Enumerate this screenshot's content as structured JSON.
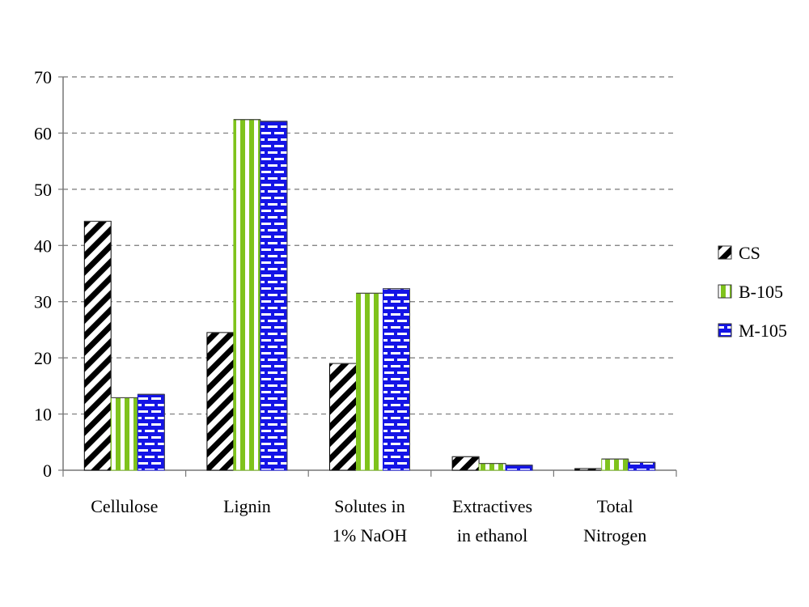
{
  "chart_data": {
    "type": "bar",
    "title": "",
    "xlabel": "",
    "ylabel": "",
    "ylim": [
      0,
      70
    ],
    "yticks": [
      "0",
      "10",
      "20",
      "30",
      "40",
      "50",
      "60",
      "70"
    ],
    "grid": true,
    "legend_position": "right",
    "categories": [
      [
        "Cellulose"
      ],
      [
        "Lignin"
      ],
      [
        "Solutes in",
        "1% NaOH"
      ],
      [
        "Extractives",
        "in ethanol"
      ],
      [
        "Total",
        "Nitrogen"
      ]
    ],
    "series": [
      {
        "name": "CS",
        "pattern": "diagonal-stripes",
        "colors": [
          "#000000",
          "#ffffff"
        ],
        "values": [
          44.3,
          24.5,
          19.0,
          2.4,
          0.3
        ]
      },
      {
        "name": "B-105",
        "pattern": "vertical-stripes",
        "colors": [
          "#7fc31c",
          "#ffffff"
        ],
        "values": [
          12.9,
          62.4,
          31.5,
          1.2,
          2.0
        ]
      },
      {
        "name": "M-105",
        "pattern": "brick",
        "colors": [
          "#1414e6",
          "#ffffff"
        ],
        "values": [
          13.5,
          62.1,
          32.3,
          0.9,
          1.4
        ]
      }
    ]
  }
}
